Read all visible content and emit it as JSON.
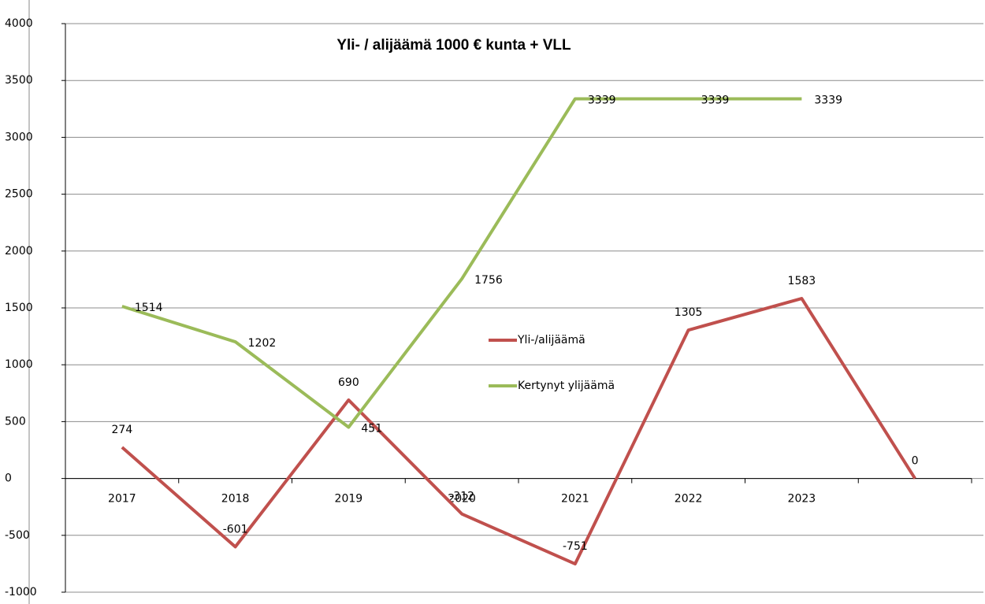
{
  "chart_data": {
    "type": "line",
    "title": "Yli- / alijäämä 1000 € kunta + VLL",
    "categories": [
      "2017",
      "2018",
      "2019",
      "2020",
      "2021",
      "2022",
      "2023",
      null
    ],
    "series": [
      {
        "name": "Yli-/alijäämä",
        "color": "#c0504d",
        "values": [
          274,
          -601,
          690,
          -312,
          -751,
          1305,
          1583,
          0
        ]
      },
      {
        "name": "Kertynyt ylijäämä",
        "color": "#9bbb59",
        "values": [
          1514,
          1202,
          451,
          1756,
          3339,
          3339,
          3339,
          null
        ]
      }
    ],
    "ylim": [
      -1000,
      4000
    ],
    "yticks": [
      -1000,
      -500,
      0,
      500,
      1000,
      1500,
      2000,
      2500,
      3000,
      3500,
      4000
    ],
    "grid": true
  }
}
